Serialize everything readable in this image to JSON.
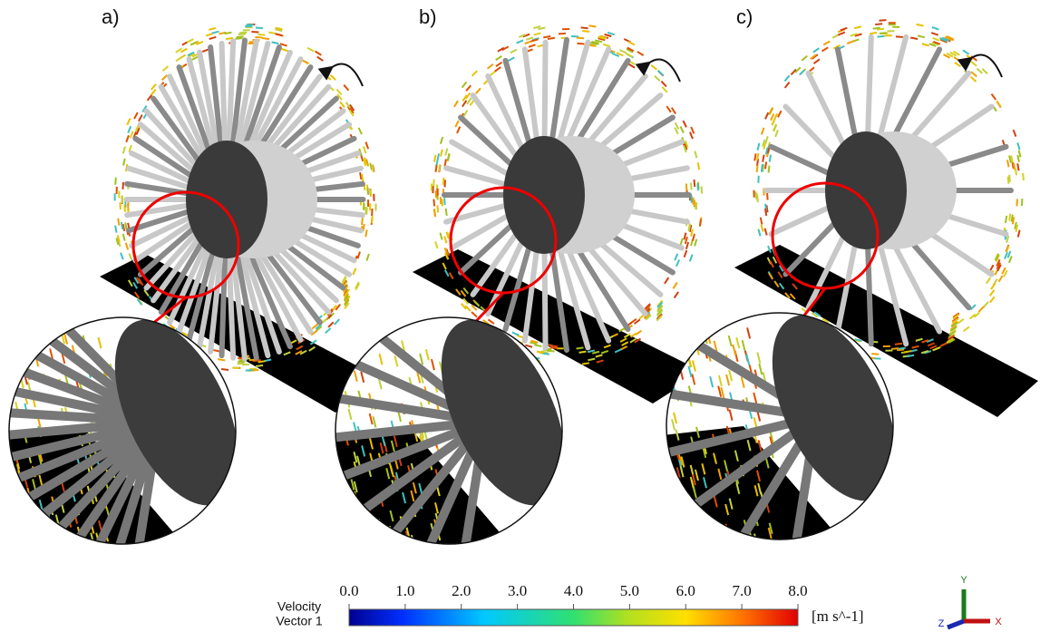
{
  "panels": [
    {
      "label": "a)"
    },
    {
      "label": "b)"
    },
    {
      "label": "c)"
    }
  ],
  "colorbar": {
    "title": "Velocity",
    "subtitle": "Vector 1",
    "unit": "[m s^-1]",
    "range": [
      0,
      8
    ],
    "ticks": [
      {
        "value": 0,
        "label": "0.0"
      },
      {
        "value": 1,
        "label": "1.0"
      },
      {
        "value": 2,
        "label": "2.0"
      },
      {
        "value": 3,
        "label": "3.0"
      },
      {
        "value": 4,
        "label": "4.0"
      },
      {
        "value": 5,
        "label": "5.0"
      },
      {
        "value": 6,
        "label": "6.0"
      },
      {
        "value": 7,
        "label": "7.0"
      },
      {
        "value": 8,
        "label": "8.0"
      }
    ]
  },
  "axes": {
    "y": "Y",
    "z": "Z",
    "x": "X"
  }
}
